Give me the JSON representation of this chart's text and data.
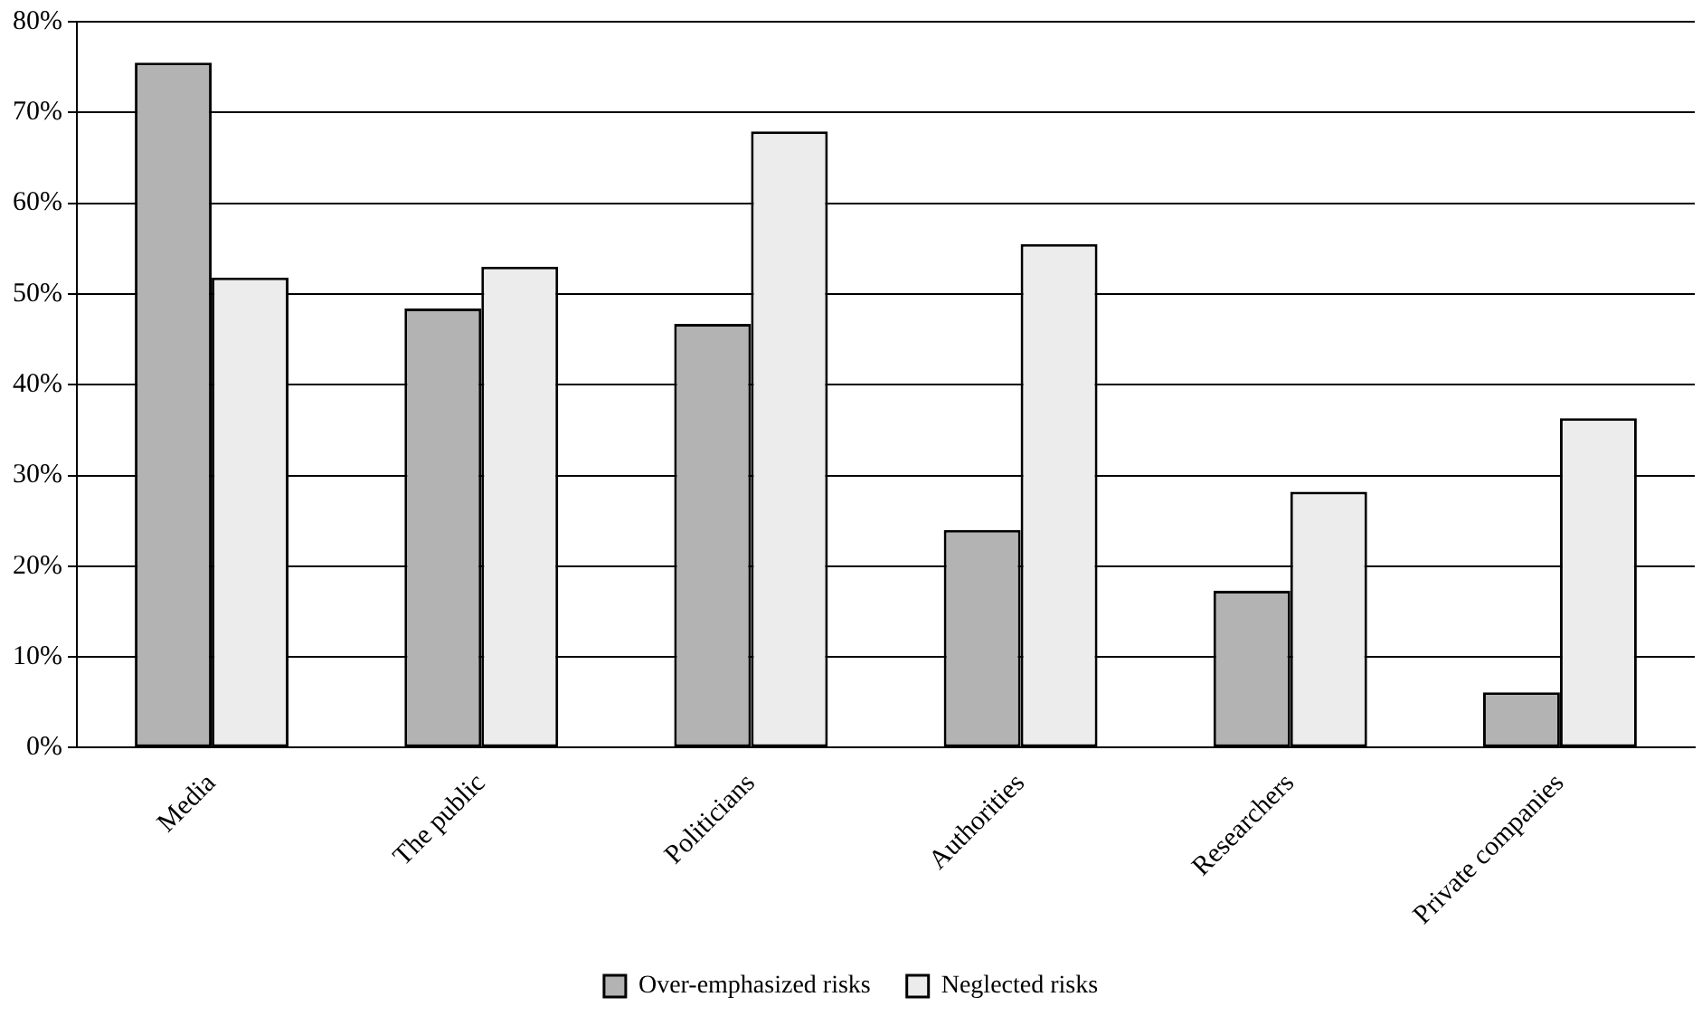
{
  "chart_data": {
    "type": "bar",
    "categories": [
      "Media",
      "The public",
      "Politicians",
      "Authorities",
      "Researchers",
      "Private companies"
    ],
    "series": [
      {
        "name": "Over-emphasized risks",
        "color": "#b3b3b3",
        "values": [
          75.5,
          48.4,
          46.7,
          24.0,
          17.3,
          6.1
        ]
      },
      {
        "name": "Neglected risks",
        "color": "#ececec",
        "values": [
          51.8,
          53.0,
          67.9,
          55.5,
          28.2,
          36.3
        ]
      }
    ],
    "ylim": [
      0,
      80
    ],
    "yticks": [
      {
        "value": 0,
        "label": "0%"
      },
      {
        "value": 10,
        "label": "10%"
      },
      {
        "value": 20,
        "label": "20%"
      },
      {
        "value": 30,
        "label": "30%"
      },
      {
        "value": 40,
        "label": "40%"
      },
      {
        "value": 50,
        "label": "50%"
      },
      {
        "value": 60,
        "label": "60%"
      },
      {
        "value": 70,
        "label": "70%"
      },
      {
        "value": 80,
        "label": "80%"
      }
    ],
    "grid": "y",
    "legend": "bottom"
  }
}
